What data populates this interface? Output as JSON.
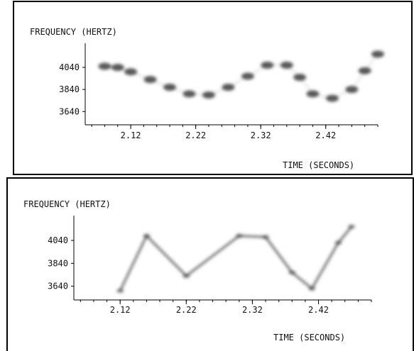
{
  "chart_data": [
    {
      "type": "heatmap",
      "title": "",
      "ylabel": "FREQUENCY (HERTZ)",
      "xlabel": "TIME (SECONDS)",
      "x_ticks": [
        "2.12",
        "2.22",
        "2.32",
        "2.42"
      ],
      "y_ticks": [
        "4040",
        "3840",
        "3640"
      ],
      "xlim": [
        2.05,
        2.5
      ],
      "ylim": [
        3520,
        4220
      ],
      "grid": false,
      "colors": {
        "ink": "#3c3c3c"
      },
      "series": [
        {
          "x": [
            2.08,
            2.1,
            2.12,
            2.15,
            2.18,
            2.21,
            2.24,
            2.27,
            2.3,
            2.33,
            2.36,
            2.38,
            2.4,
            2.43,
            2.46,
            2.48,
            2.5
          ],
          "y": [
            4050,
            4040,
            4000,
            3930,
            3860,
            3800,
            3790,
            3860,
            3960,
            4060,
            4060,
            3950,
            3800,
            3760,
            3840,
            4010,
            4160
          ]
        }
      ]
    },
    {
      "type": "heatmap",
      "title": "",
      "ylabel": "FREQUENCY (HERTZ)",
      "xlabel": "TIME (SECONDS)",
      "x_ticks": [
        "2.12",
        "2.22",
        "2.32",
        "2.42"
      ],
      "y_ticks": [
        "4040",
        "3840",
        "3640"
      ],
      "xlim": [
        2.05,
        2.5
      ],
      "ylim": [
        3520,
        4220
      ],
      "grid": false,
      "colors": {
        "ink": "#3c3c3c"
      },
      "series": [
        {
          "x": [
            2.12,
            2.16,
            2.22,
            2.3,
            2.34,
            2.38,
            2.41,
            2.45,
            2.47
          ],
          "y": [
            3600,
            4080,
            3730,
            4080,
            4070,
            3760,
            3620,
            4020,
            4160
          ]
        }
      ]
    }
  ]
}
